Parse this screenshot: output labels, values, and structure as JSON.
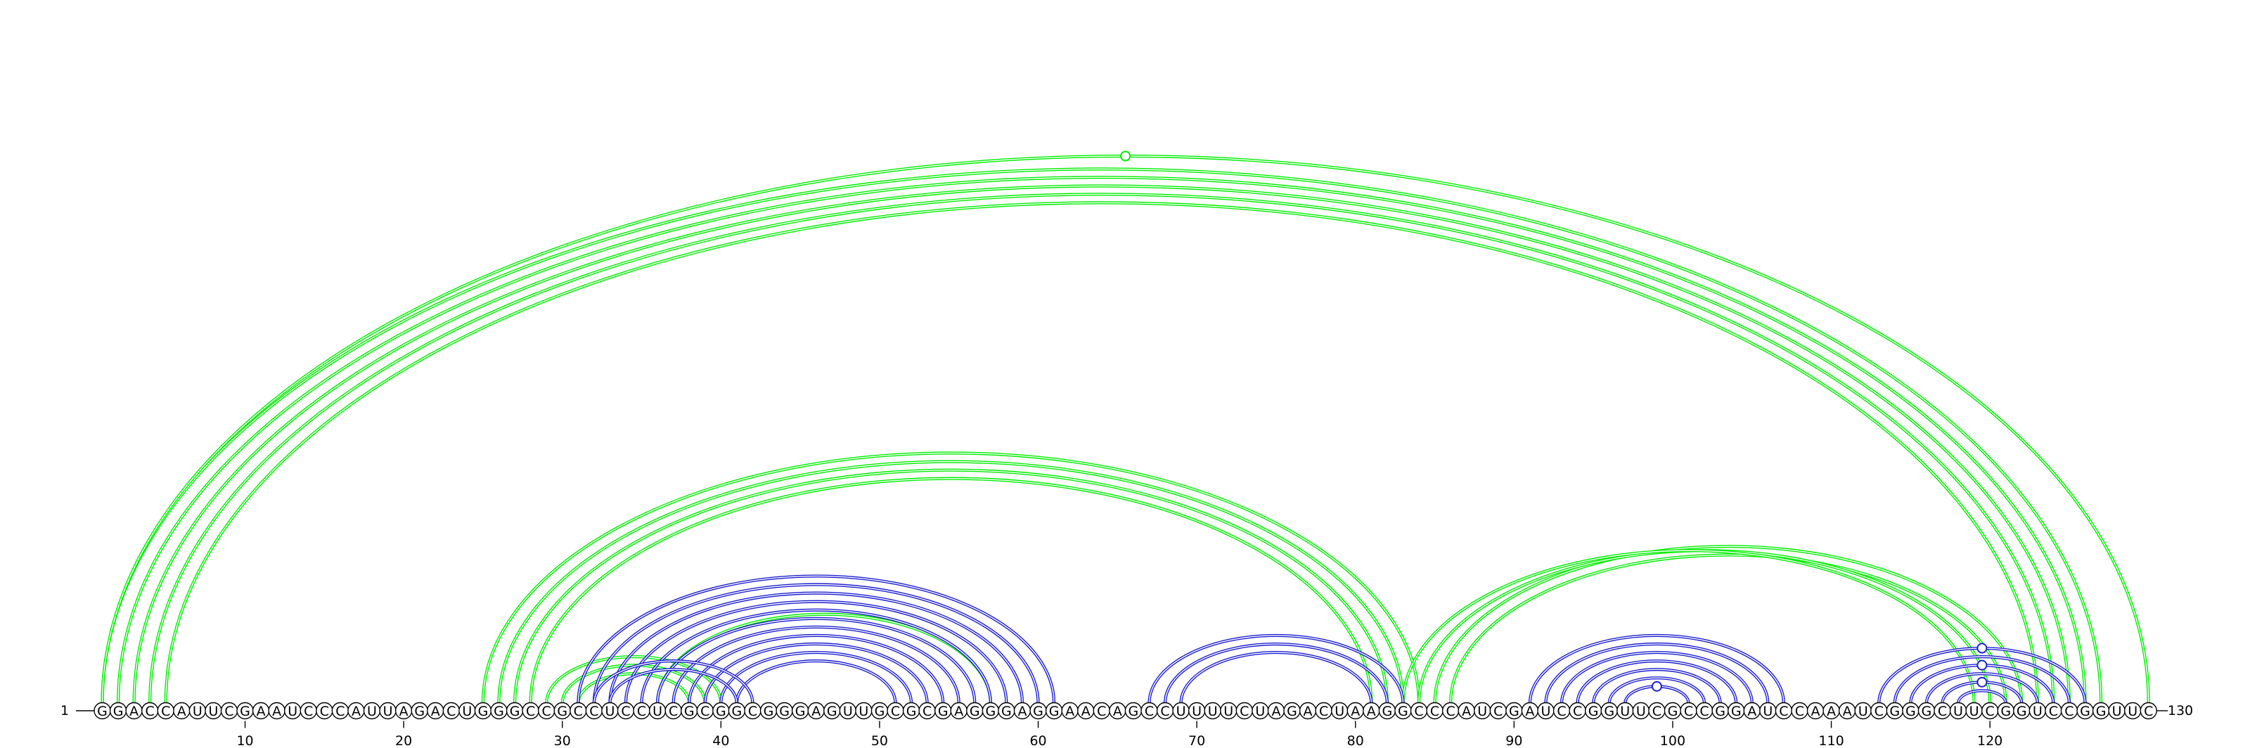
{
  "sequence": "GGACCAUUCGAAUCCCAUUAGACUGGGCCGCCUCCUCGCGGCGGGAGUUGCGCGAGGGAGGAACAGCCUUUUCUAGACUAAGGCCCAUCGAUCCGGUUCGCCGGAUCCAAAUCGGGCUUCGGUCCGGUUC",
  "start_label": "1",
  "end_label": "130",
  "ticks": [
    "10",
    "20",
    "30",
    "40",
    "50",
    "60",
    "70",
    "80",
    "90",
    "100",
    "110",
    "120"
  ],
  "colors": {
    "green": "#00ee00",
    "blue": "#1f1fd0"
  },
  "pairs": [
    {
      "i": 1,
      "j": 127,
      "color": "green"
    },
    {
      "i": 2,
      "j": 126,
      "color": "green"
    },
    {
      "i": 3,
      "j": 125,
      "color": "green"
    },
    {
      "i": 4,
      "j": 124,
      "color": "green"
    },
    {
      "i": 5,
      "j": 123,
      "color": "green"
    },
    {
      "i": 1,
      "j": 130,
      "color": "green"
    },
    {
      "i": 25,
      "j": 84,
      "color": "green"
    },
    {
      "i": 26,
      "j": 83,
      "color": "green"
    },
    {
      "i": 27,
      "j": 82,
      "color": "green"
    },
    {
      "i": 28,
      "j": 81,
      "color": "green"
    },
    {
      "i": 29,
      "j": 40,
      "color": "green"
    },
    {
      "i": 30,
      "j": 39,
      "color": "green"
    },
    {
      "i": 31,
      "j": 38,
      "color": "green"
    },
    {
      "i": 36,
      "j": 57,
      "color": "green"
    },
    {
      "i": 86,
      "j": 121,
      "color": "green"
    },
    {
      "i": 85,
      "j": 122,
      "color": "green"
    },
    {
      "i": 84,
      "j": 120,
      "color": "green"
    },
    {
      "i": 83,
      "j": 119,
      "color": "green"
    },
    {
      "i": 31,
      "j": 61,
      "color": "blue"
    },
    {
      "i": 32,
      "j": 60,
      "color": "blue"
    },
    {
      "i": 33,
      "j": 59,
      "color": "blue"
    },
    {
      "i": 34,
      "j": 58,
      "color": "blue"
    },
    {
      "i": 35,
      "j": 57,
      "color": "blue"
    },
    {
      "i": 36,
      "j": 56,
      "color": "blue"
    },
    {
      "i": 37,
      "j": 55,
      "color": "blue"
    },
    {
      "i": 38,
      "j": 54,
      "color": "blue"
    },
    {
      "i": 39,
      "j": 53,
      "color": "blue"
    },
    {
      "i": 40,
      "j": 52,
      "color": "blue"
    },
    {
      "i": 41,
      "j": 51,
      "color": "blue"
    },
    {
      "i": 32,
      "j": 42,
      "color": "blue"
    },
    {
      "i": 33,
      "j": 41,
      "color": "blue"
    },
    {
      "i": 67,
      "j": 83,
      "color": "blue"
    },
    {
      "i": 68,
      "j": 82,
      "color": "blue"
    },
    {
      "i": 69,
      "j": 81,
      "color": "blue"
    },
    {
      "i": 91,
      "j": 107,
      "color": "blue"
    },
    {
      "i": 92,
      "j": 106,
      "color": "blue"
    },
    {
      "i": 93,
      "j": 105,
      "color": "blue"
    },
    {
      "i": 94,
      "j": 104,
      "color": "blue"
    },
    {
      "i": 95,
      "j": 103,
      "color": "blue"
    },
    {
      "i": 96,
      "j": 102,
      "color": "blue"
    },
    {
      "i": 97,
      "j": 101,
      "color": "blue"
    },
    {
      "i": 113,
      "j": 126,
      "color": "blue"
    },
    {
      "i": 114,
      "j": 125,
      "color": "blue"
    },
    {
      "i": 115,
      "j": 124,
      "color": "blue"
    },
    {
      "i": 116,
      "j": 123,
      "color": "blue"
    },
    {
      "i": 117,
      "j": 122,
      "color": "blue"
    },
    {
      "i": 118,
      "j": 121,
      "color": "blue"
    }
  ],
  "markers": [
    {
      "i": 1,
      "j": 130,
      "color": "green"
    },
    {
      "i": 97,
      "j": 101,
      "color": "blue"
    },
    {
      "i": 113,
      "j": 126,
      "color": "blue"
    },
    {
      "i": 115,
      "j": 124,
      "color": "blue"
    },
    {
      "i": 117,
      "j": 122,
      "color": "blue"
    }
  ]
}
